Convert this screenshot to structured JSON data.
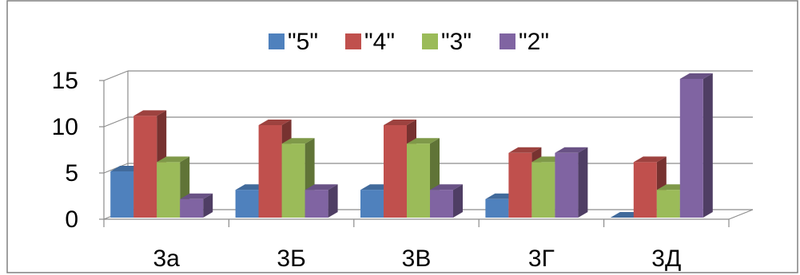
{
  "chart_data": {
    "type": "bar",
    "categories": [
      "3а",
      "3Б",
      "3В",
      "3Г",
      "3Д"
    ],
    "series": [
      {
        "name": "\"5\"",
        "values": [
          5,
          3,
          3,
          2,
          0
        ],
        "color": "#4F81BD"
      },
      {
        "name": "\"4\"",
        "values": [
          11,
          10,
          10,
          7,
          6
        ],
        "color": "#C0504D"
      },
      {
        "name": "\"3\"",
        "values": [
          6,
          8,
          8,
          6,
          3
        ],
        "color": "#9BBB59"
      },
      {
        "name": "\"2\"",
        "values": [
          2,
          3,
          3,
          7,
          15
        ],
        "color": "#8064A2"
      }
    ],
    "yticks": [
      "0",
      "5",
      "10",
      "15"
    ],
    "ylim": [
      0,
      15
    ],
    "grid": true,
    "legend_position": "top",
    "style": "3d-clustered-column"
  }
}
